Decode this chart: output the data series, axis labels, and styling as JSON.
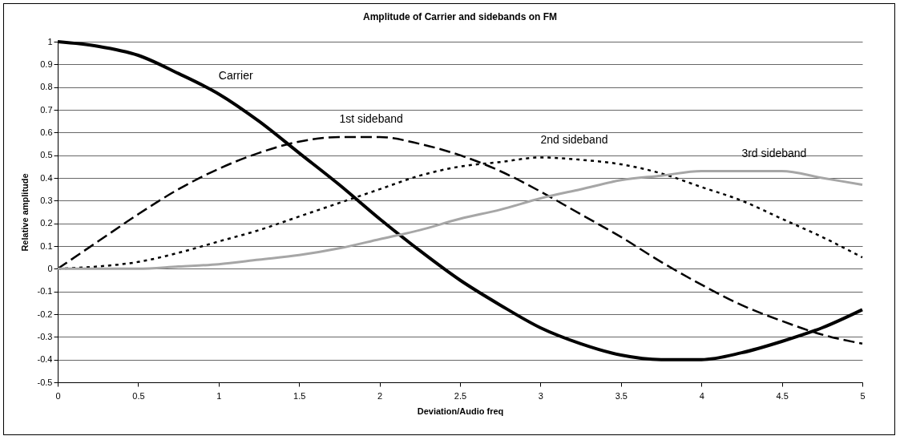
{
  "chart_data": {
    "type": "line",
    "title": "Amplitude of Carrier and sidebands on FM",
    "xlabel": "Deviation/Audio freq",
    "ylabel": "Relative amplitude",
    "x": [
      0,
      0.25,
      0.5,
      0.75,
      1,
      1.25,
      1.5,
      1.75,
      2,
      2.25,
      2.5,
      2.75,
      3,
      3.25,
      3.5,
      3.75,
      4,
      4.25,
      4.5,
      4.75,
      5
    ],
    "series": [
      {
        "name": "Carrier",
        "color": "#000000",
        "line_style": "solid",
        "values": [
          1,
          0.98,
          0.94,
          0.86,
          0.77,
          0.65,
          0.51,
          0.37,
          0.22,
          0.08,
          -0.05,
          -0.16,
          -0.26,
          -0.33,
          -0.38,
          -0.4,
          -0.4,
          -0.37,
          -0.32,
          -0.26,
          -0.18
        ]
      },
      {
        "name": "1st sideband",
        "color": "#000000",
        "line_style": "dashed",
        "values": [
          0,
          0.12,
          0.24,
          0.35,
          0.44,
          0.51,
          0.56,
          0.58,
          0.58,
          0.55,
          0.5,
          0.43,
          0.34,
          0.24,
          0.14,
          0.03,
          -0.07,
          -0.16,
          -0.23,
          -0.29,
          -0.33
        ]
      },
      {
        "name": "2nd sideband",
        "color": "#000000",
        "line_style": "dotted",
        "values": [
          0,
          0.01,
          0.03,
          0.07,
          0.12,
          0.17,
          0.23,
          0.29,
          0.35,
          0.41,
          0.45,
          0.47,
          0.49,
          0.48,
          0.46,
          0.42,
          0.36,
          0.3,
          0.22,
          0.14,
          0.05
        ]
      },
      {
        "name": "3rd sideband",
        "color": "#a6a6a6",
        "line_style": "solid",
        "values": [
          0,
          0,
          0,
          0.01,
          0.02,
          0.04,
          0.06,
          0.09,
          0.13,
          0.17,
          0.22,
          0.26,
          0.31,
          0.35,
          0.39,
          0.41,
          0.43,
          0.43,
          0.43,
          0.4,
          0.37
        ]
      }
    ],
    "xlim": [
      0,
      5
    ],
    "xticks": [
      0,
      0.5,
      1,
      1.5,
      2,
      2.5,
      3,
      3.5,
      4,
      4.5,
      5
    ],
    "ylim": [
      -0.5,
      1
    ],
    "yticks": [
      -0.5,
      -0.4,
      -0.3,
      -0.2,
      -0.1,
      0,
      0.1,
      0.2,
      0.3,
      0.4,
      0.5,
      0.6,
      0.7,
      0.8,
      0.9,
      1
    ],
    "grid": "y",
    "marker": "none"
  }
}
